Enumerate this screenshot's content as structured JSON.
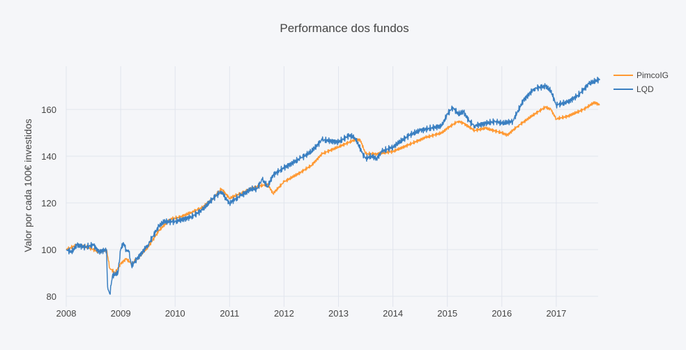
{
  "chart_data": {
    "type": "line",
    "title": "Performance dos fundos",
    "xlabel": "",
    "ylabel": "Valor por cada 100€ investidos",
    "xlim": [
      2008.0,
      2017.8
    ],
    "ylim": [
      77,
      176
    ],
    "grid": true,
    "legend_position": "top-right",
    "x_ticks": [
      2008,
      2009,
      2010,
      2011,
      2012,
      2013,
      2014,
      2015,
      2016,
      2017
    ],
    "x_tick_labels": [
      "2008",
      "2009",
      "2010",
      "2011",
      "2012",
      "2013",
      "2014",
      "2015",
      "2016",
      "2017"
    ],
    "y_ticks": [
      80,
      100,
      120,
      140,
      160
    ],
    "y_tick_labels": [
      "80",
      "100",
      "120",
      "140",
      "160"
    ],
    "series": [
      {
        "name": "PimcoIG",
        "color": "#ff9933",
        "x": [
          2008.0,
          2008.2,
          2008.4,
          2008.6,
          2008.74,
          2008.8,
          2008.9,
          2009.0,
          2009.1,
          2009.2,
          2009.3,
          2009.5,
          2009.7,
          2009.9,
          2010.1,
          2010.3,
          2010.5,
          2010.7,
          2010.85,
          2011.0,
          2011.2,
          2011.5,
          2011.7,
          2011.8,
          2012.0,
          2012.3,
          2012.5,
          2012.7,
          2013.0,
          2013.3,
          2013.4,
          2013.5,
          2013.7,
          2014.0,
          2014.3,
          2014.6,
          2014.9,
          2015.0,
          2015.2,
          2015.3,
          2015.5,
          2015.7,
          2016.0,
          2016.1,
          2016.3,
          2016.6,
          2016.8,
          2016.9,
          2017.0,
          2017.2,
          2017.5,
          2017.7,
          2017.8
        ],
        "y": [
          100,
          102,
          101,
          99,
          100,
          92,
          90,
          94,
          96,
          94,
          96,
          101,
          108,
          113,
          114,
          116,
          118,
          122,
          126,
          122,
          124,
          127,
          128,
          124,
          129,
          133,
          136,
          141,
          144,
          147,
          147,
          141,
          141,
          142,
          145,
          148,
          150,
          152,
          155,
          154,
          151,
          152,
          150,
          149,
          153,
          158,
          161,
          160,
          156,
          157,
          160,
          163,
          162
        ]
      },
      {
        "name": "LQD",
        "color": "#3a7fc1",
        "x": [
          2008.0,
          2008.1,
          2008.2,
          2008.35,
          2008.5,
          2008.6,
          2008.74,
          2008.76,
          2008.8,
          2008.85,
          2008.95,
          2009.0,
          2009.05,
          2009.1,
          2009.15,
          2009.2,
          2009.3,
          2009.5,
          2009.7,
          2009.8,
          2010.0,
          2010.3,
          2010.5,
          2010.7,
          2010.85,
          2010.95,
          2011.0,
          2011.2,
          2011.4,
          2011.5,
          2011.6,
          2011.7,
          2011.8,
          2012.0,
          2012.3,
          2012.5,
          2012.7,
          2013.0,
          2013.2,
          2013.3,
          2013.45,
          2013.5,
          2013.6,
          2013.7,
          2013.8,
          2014.0,
          2014.3,
          2014.5,
          2014.7,
          2014.9,
          2015.0,
          2015.1,
          2015.2,
          2015.3,
          2015.4,
          2015.5,
          2015.7,
          2015.9,
          2016.0,
          2016.2,
          2016.4,
          2016.6,
          2016.8,
          2016.9,
          2017.0,
          2017.2,
          2017.4,
          2017.6,
          2017.8
        ],
        "y": [
          100,
          99,
          102,
          101,
          102,
          99,
          100,
          84,
          81,
          89,
          90,
          100,
          103,
          100,
          99,
          93,
          96,
          102,
          110,
          112,
          112,
          114,
          117,
          122,
          125,
          121,
          120,
          123,
          126,
          126,
          130,
          127,
          132,
          135,
          139,
          142,
          147,
          146,
          149,
          148,
          141,
          139,
          140,
          139,
          142,
          144,
          149,
          151,
          152,
          153,
          158,
          161,
          158,
          159,
          155,
          153,
          154,
          155,
          154,
          155,
          164,
          169,
          170,
          168,
          162,
          163,
          166,
          171,
          173
        ]
      }
    ]
  }
}
